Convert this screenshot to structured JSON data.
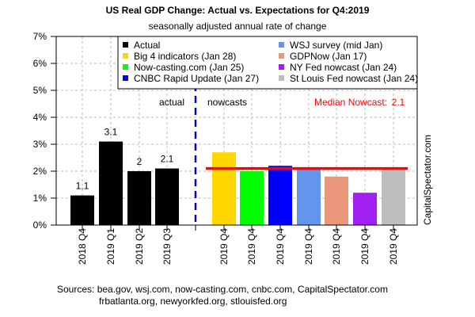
{
  "chart_data": {
    "type": "bar",
    "title": "US Real GDP Change: Actual vs. Expectations for Q4:2019",
    "subtitle": "seasonally adjusted annual rate of change",
    "xlabel": "",
    "ylabel": "",
    "ylim": [
      0,
      7
    ],
    "yticks": [
      "0%",
      "1%",
      "2%",
      "3%",
      "4%",
      "5%",
      "6%",
      "7%"
    ],
    "grid": true,
    "legend_position": "top",
    "categories": [
      "2018 Q4",
      "2019 Q1",
      "2019 Q2",
      "2019 Q3",
      "2019 Q4",
      "2019 Q4",
      "2019 Q4",
      "2019 Q4",
      "2019 Q4",
      "2019 Q4",
      "2019 Q4"
    ],
    "series": [
      {
        "name": "Actual",
        "color": "#000000",
        "values": [
          1.1,
          3.1,
          2.0,
          2.1
        ],
        "labels": [
          "1.1",
          "3.1",
          "2",
          "2.1"
        ]
      },
      {
        "name": "Big 4 indicators (Jan 28)",
        "color": "#FFD700",
        "values": [
          2.7
        ]
      },
      {
        "name": "Now-casting.com (Jan 25)",
        "color": "#00FF00",
        "values": [
          2.0
        ]
      },
      {
        "name": "CNBC Rapid Update (Jan 27)",
        "color": "#0000FF",
        "values": [
          2.2
        ]
      },
      {
        "name": "WSJ survey (mid Jan)",
        "color": "#6495ED",
        "values": [
          2.1
        ]
      },
      {
        "name": "GDPNow (Jan 17)",
        "color": "#E9967A",
        "values": [
          1.8
        ]
      },
      {
        "name": "NY Fed nowcast (Jan 24)",
        "color": "#A020F0",
        "values": [
          1.2
        ]
      },
      {
        "name": "St Louis Fed nowcast (Jan 24)",
        "color": "#BEBEBE",
        "values": [
          2.1
        ]
      }
    ],
    "annotations": {
      "actual_label": "actual",
      "nowcasts_label": "nowcasts",
      "median_label": "Median Nowcast:",
      "median_value": 2.1,
      "median_value_text": "2.1",
      "median_color": "#FF0000",
      "divider_color": "#0000CD",
      "watermark": "CapitalSpectator.com"
    },
    "sources": {
      "line1": "Sources: bea.gov, wsj.com, now-casting.com, cnbc.com, CapitalSpectator.com",
      "line2": "frbatlanta.org, newyorkfed.org, stlouisfed.org"
    }
  }
}
